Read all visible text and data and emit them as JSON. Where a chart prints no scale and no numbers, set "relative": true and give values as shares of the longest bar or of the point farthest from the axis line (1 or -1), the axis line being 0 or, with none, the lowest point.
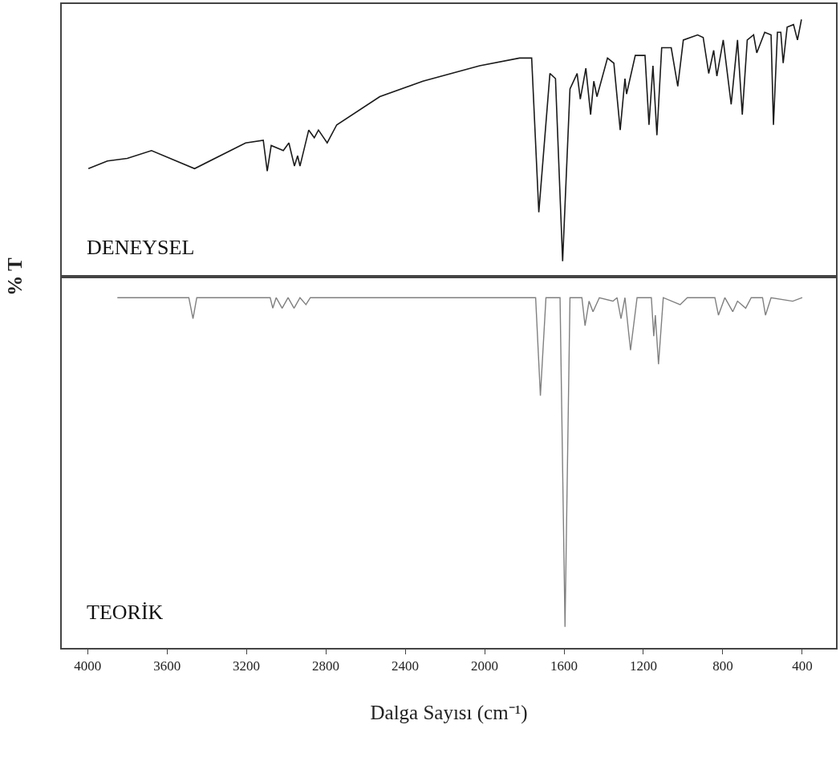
{
  "chart_data": [
    {
      "type": "line",
      "relative": true,
      "ylabel": "% T",
      "annotations": [
        "DENEYSEL"
      ],
      "tick_labels": false,
      "xlim": [
        4130,
        230
      ],
      "line_style": "solid",
      "series": [
        {
          "color": "#1a1a1a",
          "x": [
            3996,
            3900,
            3800,
            3678,
            3461,
            3204,
            3115,
            3095,
            3075,
            3014,
            2986,
            2958,
            2942,
            2930,
            2886,
            2858,
            2837,
            2793,
            2745,
            2528,
            2311,
            2025,
            1824,
            1763,
            1727,
            1671,
            1643,
            1607,
            1570,
            1534,
            1518,
            1490,
            1466,
            1450,
            1434,
            1381,
            1349,
            1317,
            1293,
            1285,
            1241,
            1192,
            1172,
            1152,
            1132,
            1108,
            1060,
            1027,
            999,
            927,
            899,
            871,
            846,
            830,
            798,
            758,
            726,
            702,
            677,
            645,
            629,
            589,
            557,
            545,
            525,
            508,
            496,
            476,
            444,
            424,
            404
          ],
          "values": [
            0.42,
            0.45,
            0.46,
            0.49,
            0.42,
            0.52,
            0.53,
            0.41,
            0.51,
            0.49,
            0.52,
            0.43,
            0.47,
            0.43,
            0.57,
            0.54,
            0.57,
            0.52,
            0.59,
            0.7,
            0.76,
            0.82,
            0.85,
            0.85,
            0.25,
            0.79,
            0.77,
            0.06,
            0.73,
            0.79,
            0.69,
            0.81,
            0.63,
            0.76,
            0.7,
            0.85,
            0.83,
            0.57,
            0.77,
            0.71,
            0.86,
            0.86,
            0.59,
            0.82,
            0.55,
            0.89,
            0.89,
            0.74,
            0.92,
            0.94,
            0.93,
            0.79,
            0.88,
            0.78,
            0.92,
            0.67,
            0.92,
            0.63,
            0.92,
            0.94,
            0.87,
            0.95,
            0.94,
            0.59,
            0.95,
            0.95,
            0.83,
            0.97,
            0.98,
            0.92,
            1
          ]
        }
      ]
    },
    {
      "type": "line",
      "relative": true,
      "xlabel": "Dalga Sayısı (cm⁻¹)",
      "annotations": [
        "TEORİK"
      ],
      "tick_labels": "x",
      "xlim": [
        4130,
        230
      ],
      "xticks": [
        4000,
        3600,
        3200,
        2800,
        2400,
        2000,
        1600,
        1200,
        800,
        400
      ],
      "line_style": "solid",
      "series": [
        {
          "color": "#808080",
          "x": [
            3850,
            3490,
            3469,
            3450,
            3080,
            3067,
            3050,
            3020,
            2990,
            2960,
            2930,
            2900,
            2878,
            1743,
            1719,
            1691,
            1620,
            1595,
            1570,
            1510,
            1494,
            1474,
            1454,
            1422,
            1353,
            1333,
            1313,
            1293,
            1265,
            1232,
            1160,
            1148,
            1140,
            1124,
            1100,
            1015,
            979,
            840,
            822,
            790,
            750,
            726,
            685,
            657,
            600,
            585,
            557,
            448,
            400
          ],
          "values": [
            1,
            1,
            0.94,
            1,
            1,
            0.97,
            1,
            0.97,
            1,
            0.97,
            1,
            0.98,
            1,
            1,
            0.72,
            1,
            1,
            0.06,
            1,
            1,
            0.92,
            0.99,
            0.96,
            1,
            0.99,
            1,
            0.94,
            1,
            0.85,
            1,
            1,
            0.89,
            0.95,
            0.81,
            1,
            0.98,
            1,
            1,
            0.95,
            1,
            0.96,
            0.99,
            0.97,
            1,
            1,
            0.95,
            1,
            0.99,
            1
          ]
        }
      ]
    }
  ]
}
